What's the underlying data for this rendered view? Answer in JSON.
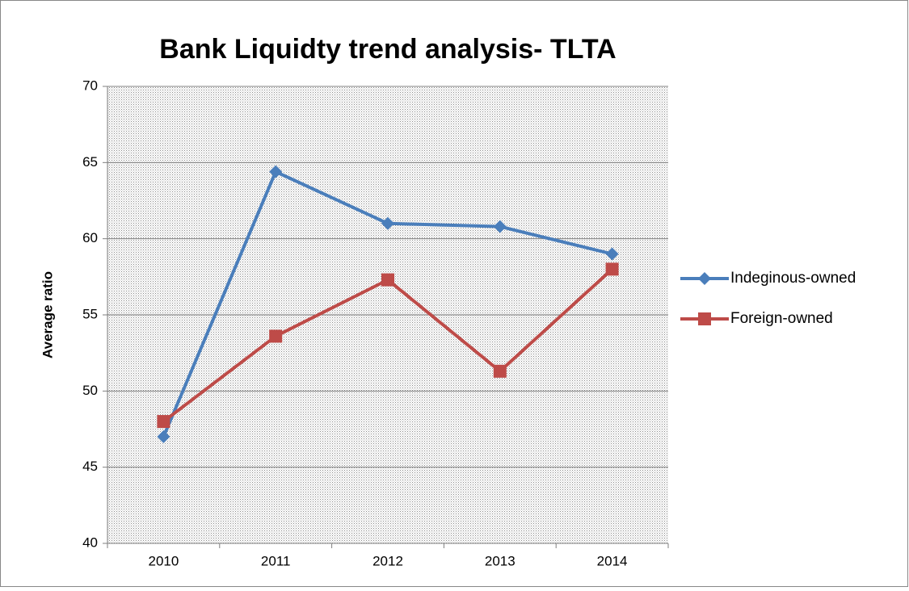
{
  "chart_data": {
    "type": "line",
    "title": "Bank Liquidty trend analysis- TLTA",
    "y_label": "Average ratio",
    "categories": [
      "2010",
      "2011",
      "2012",
      "2013",
      "2014"
    ],
    "series": [
      {
        "name": "Indeginous-owned",
        "color": "#4a7ebb",
        "marker": "diamond",
        "values": [
          47.0,
          64.4,
          61.0,
          60.8,
          59.0
        ]
      },
      {
        "name": "Foreign-owned",
        "color": "#be4b48",
        "marker": "square",
        "values": [
          48.0,
          53.6,
          57.3,
          51.3,
          58.0
        ]
      }
    ],
    "ylim": [
      40,
      70
    ],
    "yticks": [
      40,
      45,
      50,
      55,
      60,
      65,
      70
    ],
    "grid": true,
    "legend": "right"
  }
}
